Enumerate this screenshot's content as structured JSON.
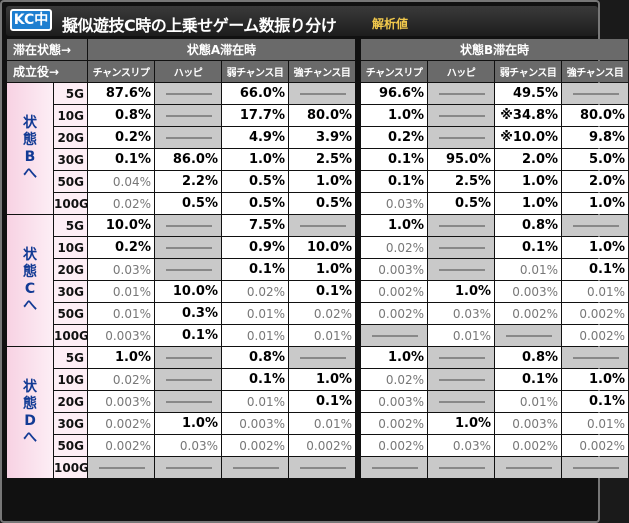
{
  "badge": "KC中",
  "title": "擬似遊技C時の上乗せゲーム数振り分け",
  "subtitle": "解析値",
  "header_label1": "滞在状態→",
  "header_label2": "成立役→",
  "state_a": "状態A滞在時",
  "state_b": "状態B滞在時",
  "columns": [
    "チャンスリプ",
    "ハッピ",
    "弱チャンス目",
    "強チャンス目",
    "チャンスリプ",
    "ハッピ",
    "弱チャンス目",
    "強チャンス目"
  ],
  "groups": [
    {
      "label": "状態Bへ",
      "rows": [
        {
          "g": "5G",
          "v": [
            "87.6%",
            "-",
            "66.0%",
            "-",
            "96.6%",
            "-",
            "49.5%",
            "-"
          ]
        },
        {
          "g": "10G",
          "v": [
            "0.8%",
            "-",
            "17.7%",
            "80.0%",
            "1.0%",
            "-",
            "※34.8%",
            "80.0%"
          ]
        },
        {
          "g": "20G",
          "v": [
            "0.2%",
            "-",
            "4.9%",
            "3.9%",
            "0.2%",
            "-",
            "※10.0%",
            "9.8%"
          ]
        },
        {
          "g": "30G",
          "v": [
            "0.1%",
            "86.0%",
            "1.0%",
            "2.5%",
            "0.1%",
            "95.0%",
            "2.0%",
            "5.0%"
          ]
        },
        {
          "g": "50G",
          "v": [
            "0.04%",
            "2.2%",
            "0.5%",
            "1.0%",
            "0.1%",
            "2.5%",
            "1.0%",
            "2.0%"
          ]
        },
        {
          "g": "100G",
          "v": [
            "0.02%",
            "0.5%",
            "0.5%",
            "0.5%",
            "0.03%",
            "0.5%",
            "1.0%",
            "1.0%"
          ]
        }
      ]
    },
    {
      "label": "状態Cへ",
      "rows": [
        {
          "g": "5G",
          "v": [
            "10.0%",
            "-",
            "7.5%",
            "-",
            "1.0%",
            "-",
            "0.8%",
            "-"
          ]
        },
        {
          "g": "10G",
          "v": [
            "0.2%",
            "-",
            "0.9%",
            "10.0%",
            "0.02%",
            "-",
            "0.1%",
            "1.0%"
          ]
        },
        {
          "g": "20G",
          "v": [
            "0.03%",
            "-",
            "0.1%",
            "1.0%",
            "0.003%",
            "-",
            "0.01%",
            "0.1%"
          ]
        },
        {
          "g": "30G",
          "v": [
            "0.01%",
            "10.0%",
            "0.02%",
            "0.1%",
            "0.002%",
            "1.0%",
            "0.003%",
            "0.01%"
          ]
        },
        {
          "g": "50G",
          "v": [
            "0.01%",
            "0.3%",
            "0.01%",
            "0.02%",
            "0.002%",
            "0.03%",
            "0.002%",
            "0.002%"
          ]
        },
        {
          "g": "100G",
          "v": [
            "0.003%",
            "0.1%",
            "0.01%",
            "0.01%",
            "-",
            "0.01%",
            "-",
            "0.002%"
          ]
        }
      ]
    },
    {
      "label": "状態Dへ",
      "rows": [
        {
          "g": "5G",
          "v": [
            "1.0%",
            "-",
            "0.8%",
            "-",
            "1.0%",
            "-",
            "0.8%",
            "-"
          ]
        },
        {
          "g": "10G",
          "v": [
            "0.02%",
            "-",
            "0.1%",
            "1.0%",
            "0.02%",
            "-",
            "0.1%",
            "1.0%"
          ]
        },
        {
          "g": "20G",
          "v": [
            "0.003%",
            "-",
            "0.01%",
            "0.1%",
            "0.003%",
            "-",
            "0.01%",
            "0.1%"
          ]
        },
        {
          "g": "30G",
          "v": [
            "0.002%",
            "1.0%",
            "0.003%",
            "0.01%",
            "0.002%",
            "1.0%",
            "0.003%",
            "0.01%"
          ]
        },
        {
          "g": "50G",
          "v": [
            "0.002%",
            "0.03%",
            "0.002%",
            "0.002%",
            "0.002%",
            "0.03%",
            "0.002%",
            "0.002%"
          ]
        },
        {
          "g": "100G",
          "v": [
            "-",
            "-",
            "-",
            "-",
            "-",
            "-",
            "-",
            "-"
          ]
        }
      ]
    }
  ],
  "colors": {
    "badge": "#1e7fd0",
    "subtitle": "#f2c94c",
    "group_text": "#123a94",
    "group_bg": "#f7d2e3",
    "dash_cell": "#c9c9c9",
    "header_bg": "#6a6a6a"
  }
}
